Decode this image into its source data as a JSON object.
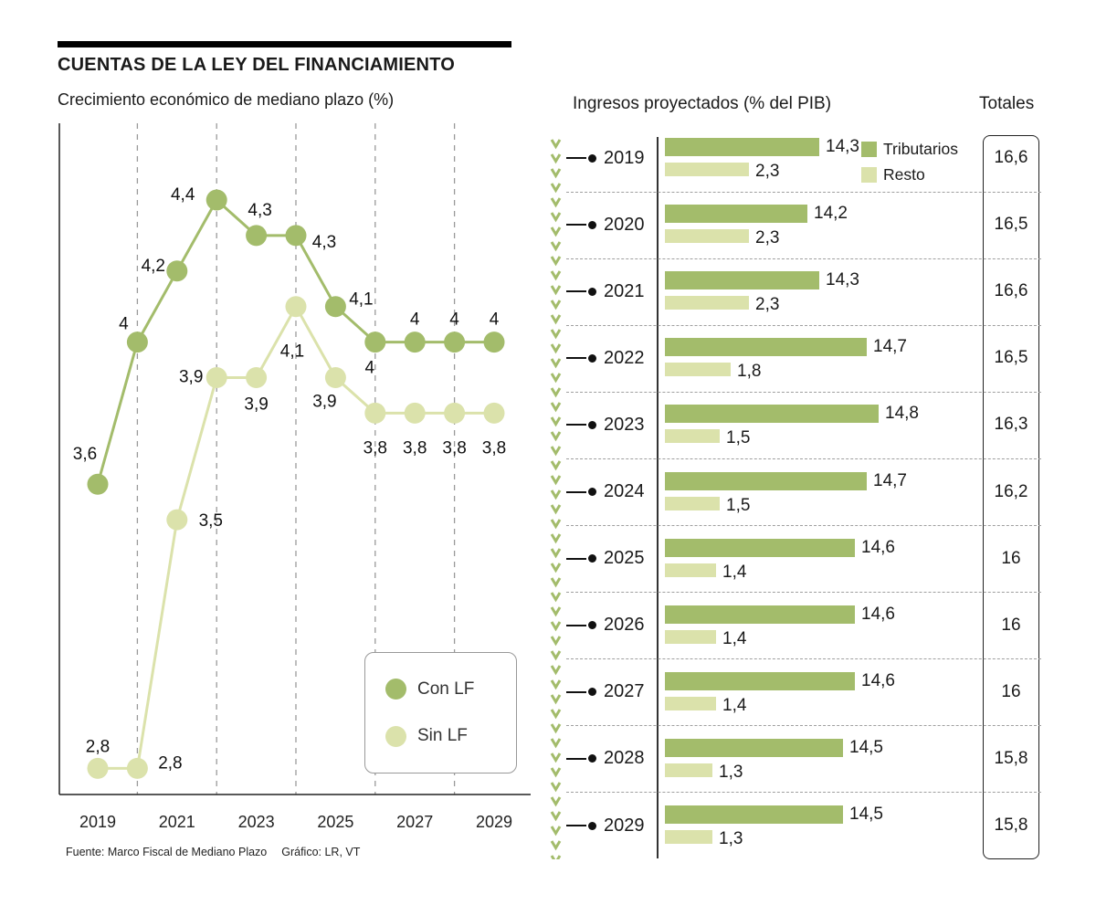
{
  "header": {
    "title": "CUENTAS DE LA LEY DEL FINANCIAMIENTO",
    "left_subtitle": "Crecimiento económico de mediano plazo (%)",
    "right_title": "Ingresos proyectados (% del PIB)",
    "totals_label": "Totales"
  },
  "footer": {
    "source": "Fuente: Marco Fiscal de Mediano Plazo",
    "credit": "Gráfico: LR, VT"
  },
  "colors": {
    "dark_green": "#a3bc6b",
    "light_green": "#dbe2ab",
    "grid": "#9a9a9a",
    "axis": "#222222",
    "text": "#1a1a1a"
  },
  "chart_data": [
    {
      "type": "line",
      "title": "Crecimiento económico de mediano plazo (%)",
      "x": [
        2019,
        2020,
        2021,
        2022,
        2023,
        2024,
        2025,
        2026,
        2027,
        2028,
        2029
      ],
      "x_tick_labels": [
        "2019",
        "2021",
        "2023",
        "2025",
        "2027",
        "2029"
      ],
      "ylim": [
        2.7,
        4.4
      ],
      "grid": "dashed-vertical-even-years",
      "legend_position": "bottom-right-box",
      "series": [
        {
          "name": "Con LF",
          "values": [
            3.6,
            4,
            4.2,
            4.4,
            4.3,
            4.3,
            4.1,
            4,
            4,
            4,
            4
          ],
          "labels": [
            "3,6",
            "4",
            "4,2",
            "4,4",
            "4,3",
            "4,3",
            "4,1",
            "4",
            "4",
            "4",
            "4"
          ],
          "label_offsets": [
            [
              -14,
              -33
            ],
            [
              -15,
              -20
            ],
            [
              -26,
              -6
            ],
            [
              -37,
              -6
            ],
            [
              4,
              -28
            ],
            [
              31,
              7
            ],
            [
              28,
              -8
            ],
            [
              -6,
              28
            ],
            [
              0,
              -25
            ],
            [
              0,
              -25
            ],
            [
              0,
              -25
            ]
          ]
        },
        {
          "name": "Sin LF",
          "values": [
            2.8,
            2.8,
            3.5,
            3.9,
            3.9,
            4.1,
            3.9,
            3.8,
            3.8,
            3.8,
            3.8
          ],
          "labels": [
            "2,8",
            "2,8",
            "3,5",
            "3,9",
            "3,9",
            "4,1",
            "3,9",
            "3,8",
            "3,8",
            "3,8",
            "3,8"
          ],
          "label_offsets": [
            [
              0,
              -24
            ],
            [
              36,
              -6
            ],
            [
              37,
              1
            ],
            [
              -28,
              -1
            ],
            [
              0,
              29
            ],
            [
              -4,
              49
            ],
            [
              -12,
              26
            ],
            [
              0,
              38
            ],
            [
              0,
              38
            ],
            [
              0,
              38
            ],
            [
              0,
              38
            ]
          ]
        }
      ]
    },
    {
      "type": "bar",
      "title": "Ingresos proyectados (% del PIB)",
      "orientation": "horizontal",
      "categories": [
        "2019",
        "2020",
        "2021",
        "2022",
        "2023",
        "2024",
        "2025",
        "2026",
        "2027",
        "2028",
        "2029"
      ],
      "series": [
        {
          "name": "Tributarios",
          "values": [
            14.3,
            14.2,
            14.3,
            14.7,
            14.8,
            14.7,
            14.6,
            14.6,
            14.6,
            14.5,
            14.5
          ],
          "labels": [
            "14,3",
            "14,2",
            "14,3",
            "14,7",
            "14,8",
            "14,7",
            "14,6",
            "14,6",
            "14,6",
            "14,5",
            "14,5"
          ]
        },
        {
          "name": "Resto",
          "values": [
            2.3,
            2.3,
            2.3,
            1.8,
            1.5,
            1.5,
            1.4,
            1.4,
            1.4,
            1.3,
            1.3
          ],
          "labels": [
            "2,3",
            "2,3",
            "2,3",
            "1,8",
            "1,5",
            "1,5",
            "1,4",
            "1,4",
            "1,4",
            "1,3",
            "1,3"
          ]
        }
      ],
      "totals": [
        "16,6",
        "16,5",
        "16,6",
        "16,5",
        "16,3",
        "16,2",
        "16",
        "16",
        "16",
        "15,8",
        "15,8"
      ]
    }
  ]
}
